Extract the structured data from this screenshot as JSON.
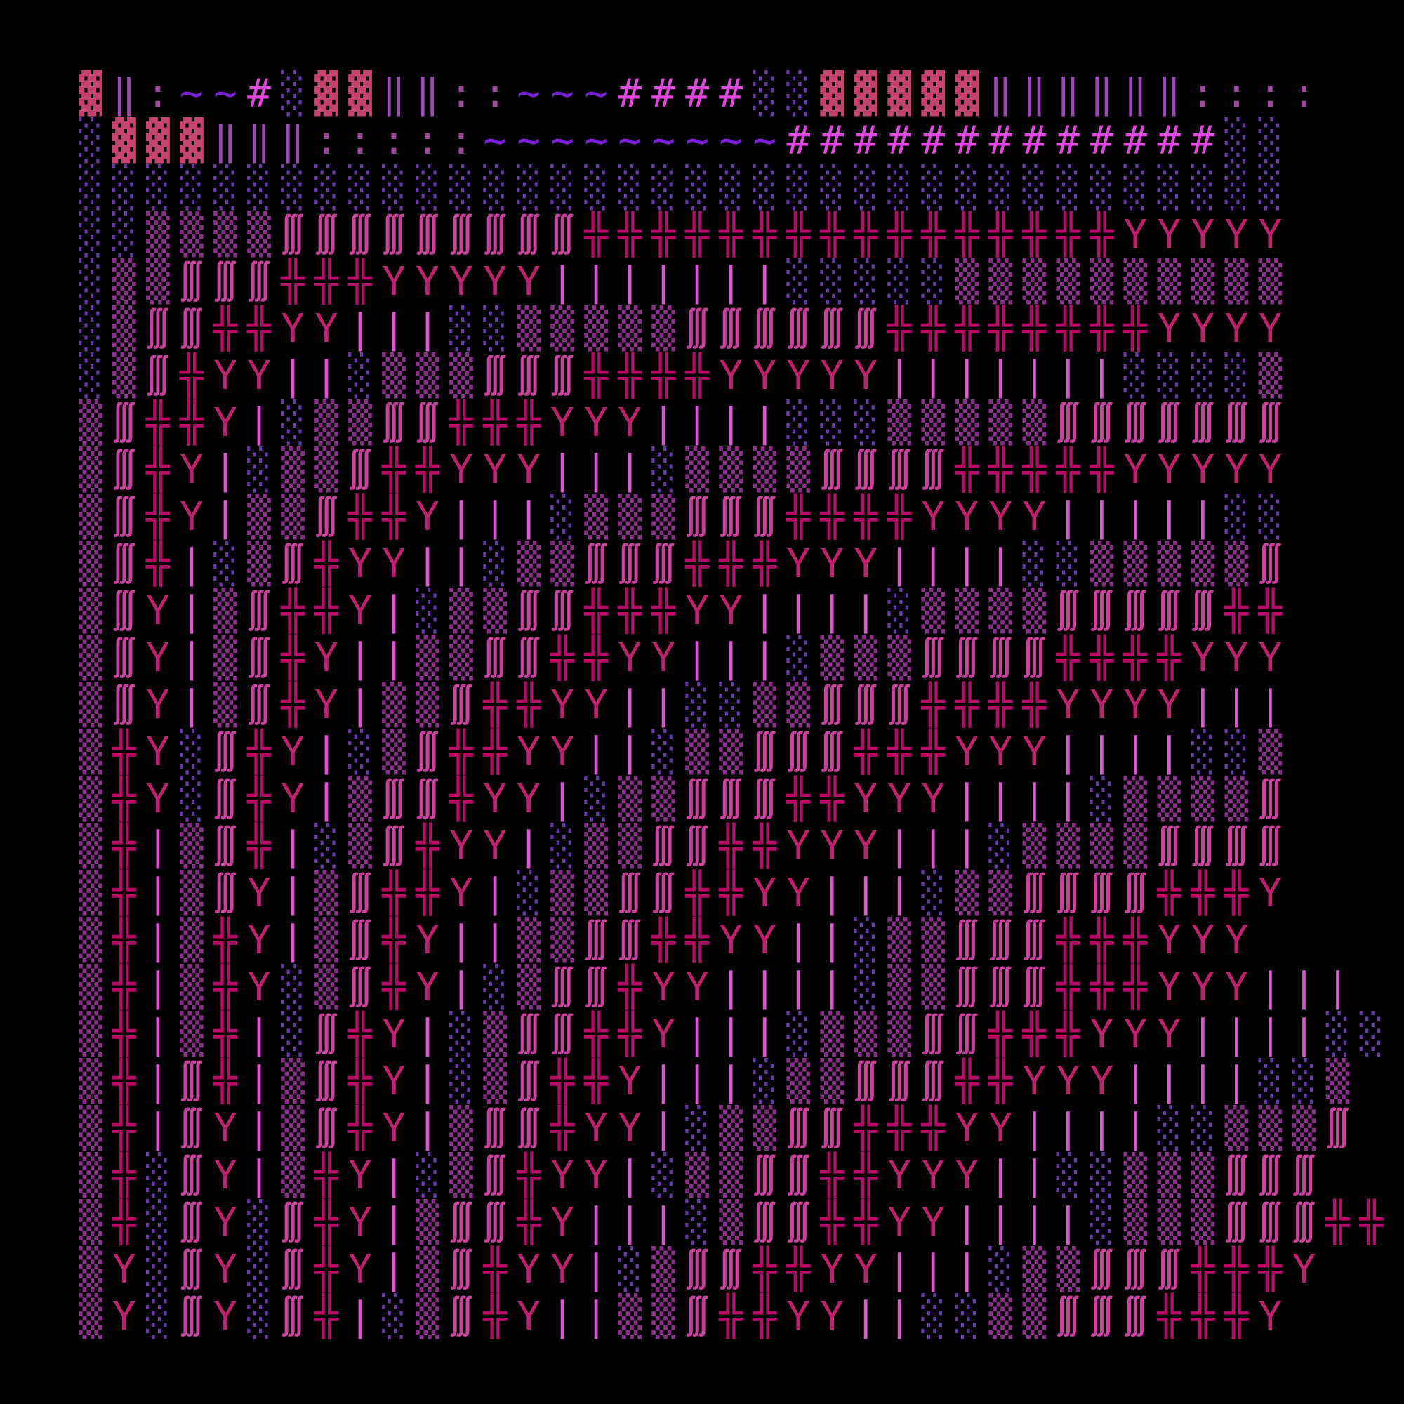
{
  "glyph_map": {
    "▓": {
      "name": "dark-shade-block",
      "text": "▓",
      "color": "#c4446f",
      "cls": ""
    },
    "‖": {
      "name": "double-bar",
      "text": "‖",
      "color": "#9b4ab5",
      "cls": ""
    },
    ":": {
      "name": "two-dots",
      "text": "..",
      "color": "#a04a9a",
      "cls": "dots"
    },
    "~": {
      "name": "quote-tilde",
      "text": "'~",
      "color": "#7a1fe0",
      "cls": "tilde"
    },
    "#": {
      "name": "hash",
      "text": "#",
      "color": "#e048e0",
      "cls": ""
    },
    "░": {
      "name": "light-shade-block",
      "text": "░",
      "color": "#6b3aa8",
      "cls": ""
    },
    "▒": {
      "name": "medium-shade-block",
      "text": "▒",
      "color": "#8a2f8a",
      "cls": ""
    },
    "∭": {
      "name": "triple-integral",
      "text": "∭",
      "color": "#c8429e",
      "cls": "integral"
    },
    "╬": {
      "name": "box-double-cross",
      "text": "╬",
      "color": "#b80a68",
      "cls": ""
    },
    "Y": {
      "name": "y-dot-above",
      "text": "Ẏ",
      "color": "#c02070",
      "cls": ""
    },
    "|": {
      "name": "pipe-pair",
      "text": "||",
      "color": "#e055d8",
      "cls": "bars"
    }
  },
  "rows": [
    "▓‖:~~#░▓▓‖‖::~~~####░░▓▓▓▓▓‖‖‖‖‖‖::::",
    "░▓▓▓‖‖‖:::::~~~~~~~~~#############░░",
    "░░░░░░░░░░░░░░░░░░░░░░░░░░░░░░░░░░░░",
    "░░▒▒▒▒∭∭∭∭∭∭∭∭∭╬╬╬╬╬╬╬╬╬╬╬╬╬╬╬╬YYYYY",
    "░▒▒∭∭∭╬╬╬YYYYY|||||||░░░░░▒▒▒▒▒▒▒▒▒▒",
    "░▒∭∭╬╬YY|||░░▒▒▒▒▒∭∭∭∭∭∭╬╬╬╬╬╬╬╬YYYY",
    "░▒∭╬YY||░▒▒▒∭∭∭╬╬╬╬YYYYY|||||||░░░░▒",
    "▒∭╬╬Y|░▒▒∭∭╬╬╬YYY||||░░░▒▒▒▒▒∭∭∭∭∭∭∭",
    "▒∭╬Y|░▒▒∭╬╬YYY|||░▒▒▒▒∭∭∭∭╬╬╬╬╬YYYYY",
    "▒∭╬Y|▒▒∭╬╬Y|||░▒▒▒∭∭∭╬╬╬╬YYYY|||||░░",
    "▒∭╬|░▒∭╬YY||░▒▒∭∭∭╬╬╬YYY||||░░▒▒▒▒▒∭",
    "▒∭Y|▒∭╬╬Y|░▒▒∭∭╬╬╬YY||||░▒▒▒▒∭∭∭∭∭╬╬",
    "▒∭Y|▒∭╬Y||▒▒∭∭╬╬YY|||░▒▒▒∭∭∭∭╬╬╬╬YYY",
    "▒∭Y|▒∭╬Y|▒▒∭╬╬YY||░░▒▒∭∭∭╬╬╬╬YYYY|||",
    "▒╬Y░∭╬Y|░▒∭╬╬YY||░▒▒∭∭∭╬╬╬YYY||||░░▒",
    "▒╬Y░∭╬Y|▒∭∭╬YY|░▒▒∭∭∭╬╬YYY||||░▒▒▒▒∭",
    "▒╬|▒∭╬|░▒∭╬YY|░▒▒∭∭╬╬YYY|||░▒▒▒▒∭∭∭∭",
    "▒╬|▒∭Y|▒∭╬╬Y|░▒▒∭∭╬╬YY|||░▒▒∭∭∭∭╬╬╬Y",
    "▒╬|▒╬Y|▒∭╬Y||▒▒∭∭╬╬YY||░▒▒∭∭∭╬╬╬YYY",
    "▒╬|▒╬Y░▒∭╬Y|░▒∭∭╬YY||||░▒▒∭∭∭╬╬╬YYY|||",
    "▒╬|▒╬|░∭╬Y|░▒∭∭╬╬Y|||░▒▒▒∭∭╬╬╬YYY||||░░",
    "▒╬|∭╬|▒∭╬Y|░▒∭╬╬Y|||░▒▒∭∭∭╬╬YYY||||░░▒",
    "▒╬|∭Y|▒∭╬Y|▒∭∭╬YY|░▒▒∭∭╬╬╬YY||||░░▒▒▒∭",
    "▒╬░∭Y|▒╬Y|░▒∭╬YY|░▒▒∭∭╬╬YYY||░░▒▒▒∭∭∭",
    "▒╬░∭Y░∭╬Y|▒∭∭╬Y|||░▒∭∭╬╬YY||||░▒▒▒∭∭∭╬╬",
    "▒Y░∭Y░∭╬Y|▒∭╬YY|░▒∭∭╬╬YY|||░▒▒∭∭∭╬╬╬Y",
    "▒Y░∭Y░∭╬|░▒∭╬Y||▒▒∭╬╬YY||░░▒▒∭∭∭╬╬╬Y"
  ]
}
